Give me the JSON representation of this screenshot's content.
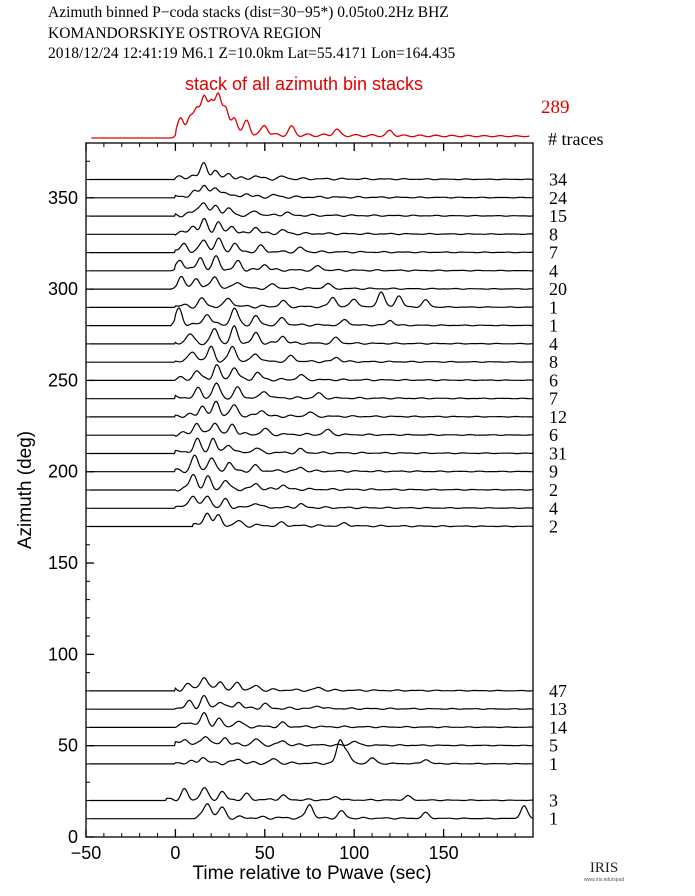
{
  "header": {
    "line1": "Azimuth binned P−coda stacks (dist=30−95*)  0.05to0.2Hz  BHZ",
    "line2": "KOMANDORSKIYE OSTROVA REGION",
    "line3": "2018/12/24  12:41:19  M6.1  Z=10.0km Lat=55.4171 Lon=164.435"
  },
  "logo": {
    "text": "IRIS",
    "subtext": "www.iris.edu/spud"
  },
  "colors": {
    "stack": "#e00000",
    "trace": "#000000"
  },
  "chart_data": {
    "type": "line",
    "title": "stack of all azimuth bin stacks",
    "total_traces": "289",
    "count_header": "# traces",
    "xlabel": "Time relative to Pwave (sec)",
    "ylabel": "Azimuth (deg)",
    "xlim": [
      -50,
      200
    ],
    "ylim": [
      0,
      380
    ],
    "xticks": [
      -50,
      0,
      50,
      100,
      150
    ],
    "xtick_labels": [
      "−50",
      "0",
      "50",
      "100",
      "150"
    ],
    "yticks": [
      0,
      50,
      100,
      150,
      200,
      250,
      300,
      350
    ],
    "grid": false,
    "traces": [
      {
        "azimuth": 360,
        "count": "34",
        "onset": 0,
        "peaks": [
          [
            10,
            0.25
          ],
          [
            16,
            1.0
          ],
          [
            22,
            0.55
          ],
          [
            30,
            0.35
          ],
          [
            45,
            0.2
          ],
          [
            60,
            0.15
          ]
        ]
      },
      {
        "azimuth": 350,
        "count": "24",
        "onset": 0,
        "peaks": [
          [
            10,
            0.3
          ],
          [
            16,
            0.9
          ],
          [
            22,
            0.6
          ],
          [
            28,
            0.4
          ],
          [
            40,
            0.25
          ],
          [
            55,
            0.15
          ]
        ]
      },
      {
        "azimuth": 340,
        "count": "15",
        "onset": 0,
        "peaks": [
          [
            12,
            0.4
          ],
          [
            16,
            0.85
          ],
          [
            23,
            0.7
          ],
          [
            30,
            0.45
          ],
          [
            45,
            0.3
          ],
          [
            62,
            0.2
          ]
        ]
      },
      {
        "azimuth": 330,
        "count": "8",
        "onset": 0,
        "peaks": [
          [
            10,
            0.5
          ],
          [
            16,
            0.9
          ],
          [
            24,
            0.8
          ],
          [
            32,
            0.5
          ],
          [
            45,
            0.45
          ],
          [
            60,
            0.25
          ]
        ]
      },
      {
        "azimuth": 320,
        "count": "7",
        "onset": 0,
        "peaks": [
          [
            5,
            0.5
          ],
          [
            16,
            0.85
          ],
          [
            24,
            0.9
          ],
          [
            33,
            0.55
          ],
          [
            48,
            0.4
          ],
          [
            70,
            0.3
          ]
        ]
      },
      {
        "azimuth": 310,
        "count": "4",
        "onset": 0,
        "peaks": [
          [
            3,
            0.7
          ],
          [
            14,
            0.85
          ],
          [
            23,
            0.9
          ],
          [
            35,
            0.6
          ],
          [
            50,
            0.4
          ],
          [
            80,
            0.3
          ]
        ]
      },
      {
        "azimuth": 300,
        "count": "20",
        "onset": 0,
        "peaks": [
          [
            3,
            0.8
          ],
          [
            12,
            0.7
          ],
          [
            22,
            0.85
          ],
          [
            35,
            0.5
          ],
          [
            55,
            0.3
          ],
          [
            85,
            0.35
          ]
        ]
      },
      {
        "azimuth": 290,
        "count": "1",
        "onset": 0,
        "peaks": [
          [
            15,
            0.5
          ],
          [
            30,
            0.6
          ],
          [
            60,
            0.4
          ],
          [
            88,
            0.7
          ],
          [
            100,
            0.6
          ],
          [
            115,
            1.1
          ],
          [
            125,
            0.8
          ],
          [
            140,
            0.5
          ]
        ]
      },
      {
        "azimuth": 280,
        "count": "1",
        "onset": 0,
        "peaks": [
          [
            2,
            1.0
          ],
          [
            18,
            0.8
          ],
          [
            33,
            1.2
          ],
          [
            45,
            0.6
          ],
          [
            60,
            0.5
          ],
          [
            95,
            0.4
          ],
          [
            120,
            0.35
          ]
        ]
      },
      {
        "azimuth": 270,
        "count": "4",
        "onset": 0,
        "peaks": [
          [
            8,
            0.6
          ],
          [
            22,
            1.0
          ],
          [
            33,
            1.1
          ],
          [
            45,
            0.7
          ],
          [
            60,
            0.5
          ],
          [
            90,
            0.4
          ]
        ]
      },
      {
        "azimuth": 260,
        "count": "8",
        "onset": 0,
        "peaks": [
          [
            10,
            0.7
          ],
          [
            20,
            1.0
          ],
          [
            32,
            1.1
          ],
          [
            45,
            0.6
          ],
          [
            65,
            0.4
          ],
          [
            90,
            0.3
          ]
        ]
      },
      {
        "azimuth": 250,
        "count": "6",
        "onset": 0,
        "peaks": [
          [
            12,
            0.6
          ],
          [
            23,
            1.0
          ],
          [
            33,
            0.9
          ],
          [
            46,
            0.5
          ],
          [
            70,
            0.35
          ]
        ]
      },
      {
        "azimuth": 240,
        "count": "7",
        "onset": 0,
        "peaks": [
          [
            13,
            0.6
          ],
          [
            23,
            1.0
          ],
          [
            35,
            0.7
          ],
          [
            50,
            0.5
          ],
          [
            80,
            0.35
          ]
        ]
      },
      {
        "azimuth": 230,
        "count": "12",
        "onset": 0,
        "peaks": [
          [
            15,
            0.7
          ],
          [
            23,
            1.0
          ],
          [
            33,
            0.8
          ],
          [
            48,
            0.45
          ],
          [
            75,
            0.3
          ]
        ]
      },
      {
        "azimuth": 220,
        "count": "6",
        "onset": 0,
        "peaks": [
          [
            12,
            0.8
          ],
          [
            22,
            0.9
          ],
          [
            32,
            0.7
          ],
          [
            50,
            0.4
          ],
          [
            85,
            0.35
          ]
        ]
      },
      {
        "azimuth": 210,
        "count": "31",
        "onset": 0,
        "peaks": [
          [
            12,
            0.9
          ],
          [
            21,
            1.0
          ],
          [
            30,
            0.6
          ],
          [
            45,
            0.35
          ],
          [
            70,
            0.25
          ]
        ]
      },
      {
        "azimuth": 200,
        "count": "9",
        "onset": 0,
        "peaks": [
          [
            11,
            1.0
          ],
          [
            20,
            0.9
          ],
          [
            30,
            0.55
          ],
          [
            45,
            0.35
          ],
          [
            70,
            0.25
          ]
        ]
      },
      {
        "azimuth": 190,
        "count": "2",
        "onset": 0,
        "peaks": [
          [
            10,
            1.0
          ],
          [
            18,
            0.8
          ],
          [
            28,
            0.6
          ],
          [
            45,
            0.4
          ],
          [
            60,
            0.3
          ]
        ]
      },
      {
        "azimuth": 180,
        "count": "4",
        "onset": 0,
        "peaks": [
          [
            10,
            0.9
          ],
          [
            18,
            0.8
          ],
          [
            28,
            0.5
          ],
          [
            45,
            0.35
          ],
          [
            70,
            0.25
          ]
        ]
      },
      {
        "azimuth": 170,
        "count": "2",
        "onset": 10,
        "peaks": [
          [
            18,
            0.9
          ],
          [
            24,
            0.6
          ],
          [
            35,
            0.3
          ],
          [
            60,
            0.2
          ],
          [
            95,
            0.2
          ]
        ]
      },
      {
        "azimuth": 80,
        "count": "47",
        "onset": 0,
        "peaks": [
          [
            7,
            0.4
          ],
          [
            16,
            1.0
          ],
          [
            25,
            0.6
          ],
          [
            35,
            0.5
          ],
          [
            45,
            0.3
          ],
          [
            80,
            0.2
          ]
        ]
      },
      {
        "azimuth": 70,
        "count": "13",
        "onset": 0,
        "peaks": [
          [
            8,
            0.4
          ],
          [
            16,
            0.8
          ],
          [
            25,
            0.5
          ],
          [
            35,
            0.45
          ],
          [
            50,
            0.3
          ],
          [
            80,
            0.2
          ]
        ]
      },
      {
        "azimuth": 60,
        "count": "14",
        "onset": 0,
        "peaks": [
          [
            8,
            0.35
          ],
          [
            16,
            0.9
          ],
          [
            24,
            0.5
          ],
          [
            35,
            0.4
          ],
          [
            60,
            0.25
          ]
        ]
      },
      {
        "azimuth": 50,
        "count": "5",
        "onset": 0,
        "peaks": [
          [
            5,
            0.4
          ],
          [
            17,
            0.7
          ],
          [
            28,
            0.5
          ],
          [
            45,
            0.4
          ],
          [
            60,
            0.3
          ],
          [
            100,
            0.3
          ]
        ]
      },
      {
        "azimuth": 40,
        "count": "1",
        "onset": 0,
        "peaks": [
          [
            15,
            0.4
          ],
          [
            35,
            0.3
          ],
          [
            55,
            0.3
          ],
          [
            92,
            1.6
          ],
          [
            96,
            0.8
          ],
          [
            110,
            0.4
          ],
          [
            140,
            0.3
          ]
        ]
      },
      {
        "azimuth": 20,
        "count": "3",
        "onset": -5,
        "peaks": [
          [
            5,
            0.6
          ],
          [
            16,
            0.8
          ],
          [
            26,
            0.5
          ],
          [
            40,
            0.35
          ],
          [
            60,
            0.3
          ],
          [
            90,
            0.25
          ],
          [
            130,
            0.3
          ]
        ]
      },
      {
        "azimuth": 10,
        "count": "1",
        "onset": 10,
        "peaks": [
          [
            18,
            1.1
          ],
          [
            26,
            0.7
          ],
          [
            75,
            1.0
          ],
          [
            93,
            0.5
          ],
          [
            140,
            0.4
          ],
          [
            195,
            0.9
          ]
        ]
      }
    ]
  }
}
